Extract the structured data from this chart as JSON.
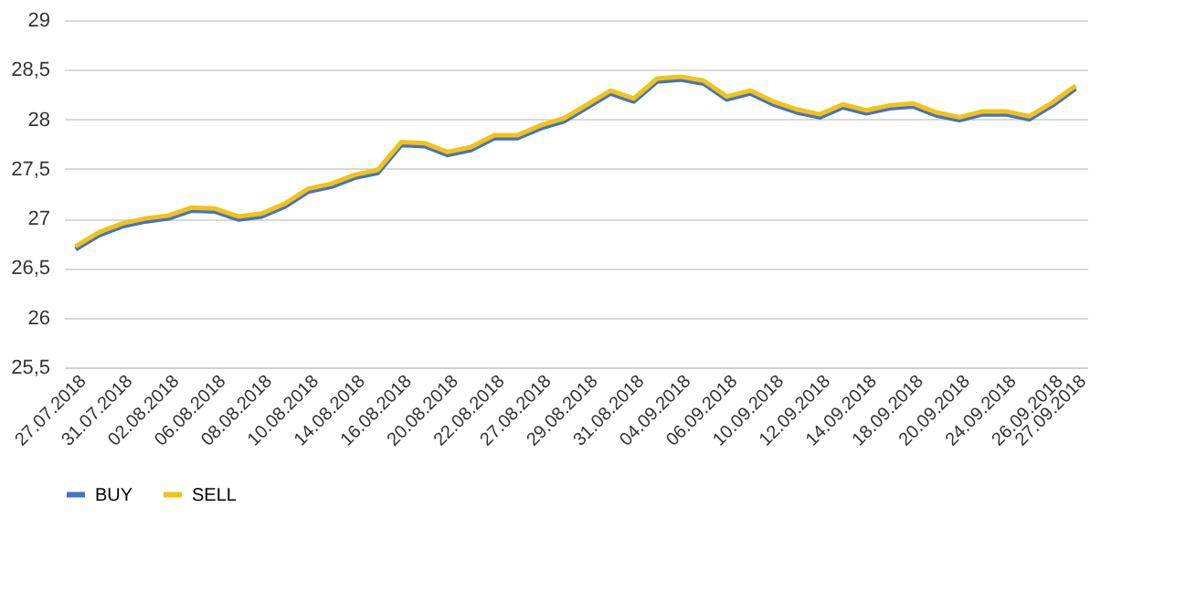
{
  "chart_data": {
    "type": "line",
    "categories": [
      "27.07.2018",
      null,
      "31.07.2018",
      null,
      "02.08.2018",
      null,
      "06.08.2018",
      null,
      "08.08.2018",
      null,
      "10.08.2018",
      null,
      "14.08.2018",
      null,
      "16.08.2018",
      null,
      "20.08.2018",
      null,
      "22.08.2018",
      null,
      "27.08.2018",
      null,
      "29.08.2018",
      null,
      "31.08.2018",
      null,
      "04.09.2018",
      null,
      "06.09.2018",
      null,
      "10.09.2018",
      null,
      "12.09.2018",
      null,
      "14.09.2018",
      null,
      "18.09.2018",
      null,
      "20.09.2018",
      null,
      "24.09.2018",
      null,
      "26.09.2018",
      "27.09.2018"
    ],
    "series": [
      {
        "name": "BUY",
        "color": "#4472c4",
        "values": [
          26.69,
          26.83,
          26.92,
          26.97,
          27.0,
          27.08,
          27.07,
          26.99,
          27.02,
          27.12,
          27.27,
          27.32,
          27.41,
          27.46,
          27.74,
          27.73,
          27.64,
          27.69,
          27.81,
          27.81,
          27.91,
          27.98,
          28.12,
          28.26,
          28.18,
          28.38,
          28.4,
          28.36,
          28.2,
          28.26,
          28.15,
          28.07,
          28.02,
          28.12,
          28.06,
          28.11,
          28.13,
          28.04,
          27.99,
          28.05,
          28.05,
          28.0,
          28.14,
          28.31
        ]
      },
      {
        "name": "SELL",
        "color": "#f2c314",
        "values": [
          26.72,
          26.86,
          26.95,
          27.0,
          27.03,
          27.11,
          27.1,
          27.02,
          27.05,
          27.15,
          27.3,
          27.35,
          27.44,
          27.49,
          27.77,
          27.76,
          27.67,
          27.72,
          27.84,
          27.84,
          27.94,
          28.01,
          28.15,
          28.29,
          28.21,
          28.41,
          28.43,
          28.39,
          28.23,
          28.29,
          28.18,
          28.1,
          28.05,
          28.15,
          28.09,
          28.14,
          28.16,
          28.07,
          28.02,
          28.08,
          28.08,
          28.03,
          28.17,
          28.34
        ]
      }
    ],
    "ylim": [
      25.5,
      29
    ],
    "yticks": [
      {
        "value": 25.5,
        "label": "25,5"
      },
      26,
      {
        "value": 26.5,
        "label": "26,5"
      },
      27,
      {
        "value": 27.5,
        "label": "27,5"
      },
      28,
      {
        "value": 28.5,
        "label": "28,5"
      },
      29
    ],
    "grid": "y",
    "legend": "bottom",
    "line_style": "solid",
    "marker": "none"
  }
}
